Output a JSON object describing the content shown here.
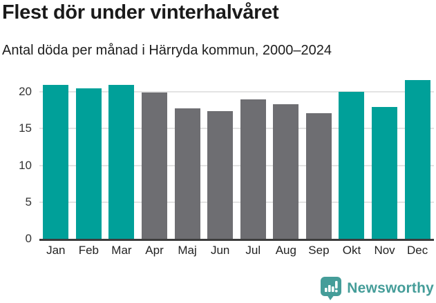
{
  "header": {
    "title": "Flest dör under vinterhalvåret",
    "subtitle": "Antal döda per månad i Härryda kommun, 2000–2024"
  },
  "chart_data": {
    "type": "bar",
    "title": "Flest dör under vinterhalvåret",
    "subtitle": "Antal döda per månad i Härryda kommun, 2000–2024",
    "categories": [
      "Jan",
      "Feb",
      "Mar",
      "Apr",
      "Maj",
      "Jun",
      "Jul",
      "Aug",
      "Sep",
      "Okt",
      "Nov",
      "Dec"
    ],
    "values": [
      21.0,
      20.5,
      21.0,
      19.9,
      17.8,
      17.4,
      19.0,
      18.3,
      17.1,
      20.0,
      18.0,
      21.6
    ],
    "bar_groups": [
      "winter",
      "winter",
      "winter",
      "summer",
      "summer",
      "summer",
      "summer",
      "summer",
      "summer",
      "winter",
      "winter",
      "winter"
    ],
    "palette": {
      "winter": "#00a099",
      "summer": "#6e6e72"
    },
    "xlabel": "",
    "ylabel": "",
    "ylim": [
      0,
      22
    ],
    "yticks": [
      0,
      5,
      10,
      15,
      20
    ],
    "grid": true,
    "legend": false,
    "gridline_color": "#e3e3e3",
    "axis_line_color": "#3c3c3c"
  },
  "footer": {
    "brand": "Newsworthy",
    "brand_color": "#459d99",
    "logo_icon": "bar-chart-speech-bubble-icon"
  }
}
